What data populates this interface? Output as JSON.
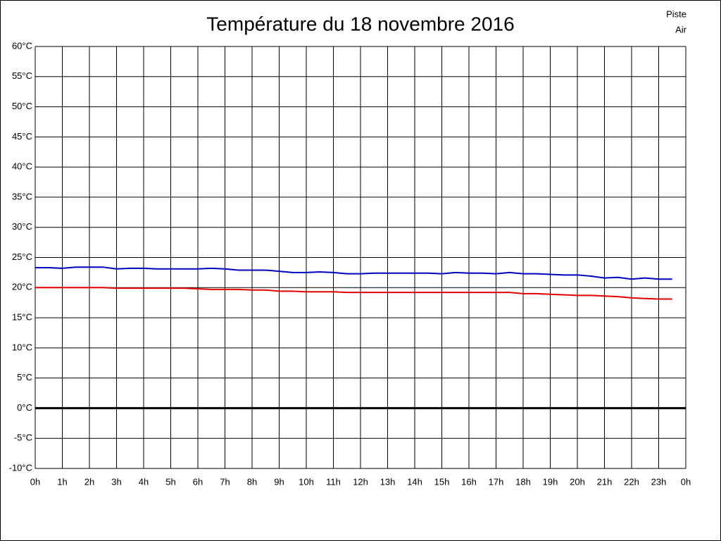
{
  "chart_data": {
    "type": "line",
    "title": "Température du 18 novembre 2016",
    "x": [
      0,
      0.5,
      1,
      1.5,
      2,
      2.5,
      3,
      3.5,
      4,
      4.5,
      5,
      5.5,
      6,
      6.5,
      7,
      7.5,
      8,
      8.5,
      9,
      9.5,
      10,
      10.5,
      11,
      11.5,
      12,
      12.5,
      13,
      13.5,
      14,
      14.5,
      15,
      15.5,
      16,
      16.5,
      17,
      17.5,
      18,
      18.5,
      19,
      19.5,
      20,
      20.5,
      21,
      21.5,
      22,
      22.5,
      23,
      23.5
    ],
    "series": [
      {
        "name": "Piste",
        "color": "#e00000",
        "values": [
          20.0,
          20.0,
          20.0,
          20.0,
          20.0,
          20.0,
          19.9,
          19.9,
          19.9,
          19.9,
          19.9,
          19.9,
          19.8,
          19.7,
          19.7,
          19.7,
          19.6,
          19.6,
          19.4,
          19.4,
          19.3,
          19.3,
          19.3,
          19.2,
          19.2,
          19.2,
          19.2,
          19.2,
          19.2,
          19.2,
          19.2,
          19.2,
          19.2,
          19.2,
          19.2,
          19.2,
          19.0,
          19.0,
          18.9,
          18.8,
          18.7,
          18.7,
          18.6,
          18.5,
          18.3,
          18.2,
          18.1,
          18.1
        ]
      },
      {
        "name": "Air",
        "color": "#0000c0",
        "values": [
          23.3,
          23.3,
          23.2,
          23.4,
          23.4,
          23.4,
          23.1,
          23.2,
          23.2,
          23.1,
          23.1,
          23.1,
          23.1,
          23.2,
          23.1,
          22.9,
          22.9,
          22.9,
          22.7,
          22.5,
          22.5,
          22.6,
          22.5,
          22.3,
          22.3,
          22.4,
          22.4,
          22.4,
          22.4,
          22.4,
          22.3,
          22.5,
          22.4,
          22.4,
          22.3,
          22.5,
          22.3,
          22.3,
          22.2,
          22.1,
          22.1,
          21.9,
          21.6,
          21.7,
          21.4,
          21.6,
          21.4,
          21.4
        ]
      }
    ],
    "xlim": [
      0,
      24
    ],
    "xticks": [
      {
        "value": 0,
        "label": "0h"
      },
      {
        "value": 1,
        "label": "1h"
      },
      {
        "value": 2,
        "label": "2h"
      },
      {
        "value": 3,
        "label": "3h"
      },
      {
        "value": 4,
        "label": "4h"
      },
      {
        "value": 5,
        "label": "5h"
      },
      {
        "value": 6,
        "label": "6h"
      },
      {
        "value": 7,
        "label": "7h"
      },
      {
        "value": 8,
        "label": "8h"
      },
      {
        "value": 9,
        "label": "9h"
      },
      {
        "value": 10,
        "label": "10h"
      },
      {
        "value": 11,
        "label": "11h"
      },
      {
        "value": 12,
        "label": "12h"
      },
      {
        "value": 13,
        "label": "13h"
      },
      {
        "value": 14,
        "label": "14h"
      },
      {
        "value": 15,
        "label": "15h"
      },
      {
        "value": 16,
        "label": "16h"
      },
      {
        "value": 17,
        "label": "17h"
      },
      {
        "value": 18,
        "label": "18h"
      },
      {
        "value": 19,
        "label": "19h"
      },
      {
        "value": 20,
        "label": "20h"
      },
      {
        "value": 21,
        "label": "21h"
      },
      {
        "value": 22,
        "label": "22h"
      },
      {
        "value": 23,
        "label": "23h"
      },
      {
        "value": 24,
        "label": "0h"
      }
    ],
    "ylim": [
      -10,
      60
    ],
    "yticks": [
      {
        "value": -10,
        "label": "-10°C"
      },
      {
        "value": -5,
        "label": "-5°C"
      },
      {
        "value": 0,
        "label": "0°C"
      },
      {
        "value": 5,
        "label": "5°C"
      },
      {
        "value": 10,
        "label": "10°C"
      },
      {
        "value": 15,
        "label": "15°C"
      },
      {
        "value": 20,
        "label": "20°C"
      },
      {
        "value": 25,
        "label": "25°C"
      },
      {
        "value": 30,
        "label": "30°C"
      },
      {
        "value": 35,
        "label": "35°C"
      },
      {
        "value": 40,
        "label": "40°C"
      },
      {
        "value": 45,
        "label": "45°C"
      },
      {
        "value": 50,
        "label": "50°C"
      },
      {
        "value": 55,
        "label": "55°C"
      },
      {
        "value": 60,
        "label": "60°C"
      }
    ],
    "grid": true,
    "zero_line": true,
    "legend": "top-right"
  }
}
